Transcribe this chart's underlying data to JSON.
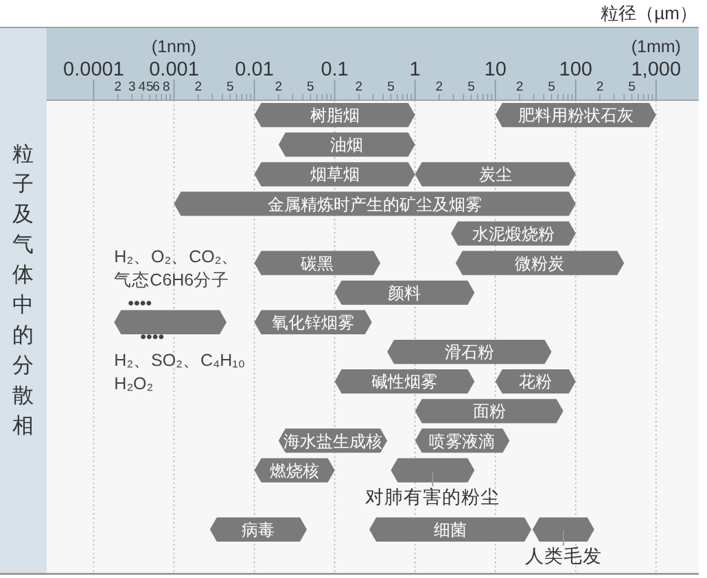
{
  "chart_data": {
    "type": "bar",
    "orientation": "horizontal",
    "log": "x",
    "grid": "x",
    "xlabel": "粒径（µm）",
    "ylabel": "粒子及气体中的分散相",
    "xlim": [
      2.6e-05,
      3400
    ],
    "xticks": [
      0.0001,
      {
        "value": 0.0002,
        "label": null
      },
      {
        "value": 0.0003,
        "label": null
      },
      {
        "value": 0.0004,
        "label": null
      },
      {
        "value": 0.0005,
        "label": null
      },
      {
        "value": 0.0006,
        "label": null
      },
      {
        "value": 0.0007,
        "label": null
      },
      {
        "value": 0.0008,
        "label": null
      },
      {
        "value": 0.0009,
        "label": null
      },
      0.001,
      {
        "value": 0.002,
        "label": null
      },
      {
        "value": 0.003,
        "label": null
      },
      {
        "value": 0.004,
        "label": null
      },
      {
        "value": 0.005,
        "label": null
      },
      {
        "value": 0.006,
        "label": null
      },
      {
        "value": 0.007,
        "label": null
      },
      {
        "value": 0.008,
        "label": null
      },
      {
        "value": 0.009,
        "label": null
      },
      0.01,
      {
        "value": 0.02,
        "label": null
      },
      {
        "value": 0.03,
        "label": null
      },
      {
        "value": 0.04,
        "label": null
      },
      {
        "value": 0.05,
        "label": null
      },
      {
        "value": 0.06,
        "label": null
      },
      {
        "value": 0.07,
        "label": null
      },
      {
        "value": 0.08,
        "label": null
      },
      {
        "value": 0.09,
        "label": null
      },
      0.1,
      {
        "value": 0.2,
        "label": null
      },
      {
        "value": 0.3,
        "label": null
      },
      {
        "value": 0.4,
        "label": null
      },
      {
        "value": 0.5,
        "label": null
      },
      {
        "value": 0.6,
        "label": null
      },
      {
        "value": 0.7,
        "label": null
      },
      {
        "value": 0.8,
        "label": null
      },
      {
        "value": 0.9,
        "label": null
      },
      1,
      {
        "value": 2,
        "label": null
      },
      {
        "value": 3,
        "label": null
      },
      {
        "value": 4,
        "label": null
      },
      {
        "value": 5,
        "label": null
      },
      {
        "value": 6,
        "label": null
      },
      {
        "value": 7,
        "label": null
      },
      {
        "value": 8,
        "label": null
      },
      {
        "value": 9,
        "label": null
      },
      10,
      {
        "value": 20,
        "label": null
      },
      {
        "value": 30,
        "label": null
      },
      {
        "value": 40,
        "label": null
      },
      {
        "value": 50,
        "label": null
      },
      {
        "value": 60,
        "label": null
      },
      {
        "value": 70,
        "label": null
      },
      {
        "value": 80,
        "label": null
      },
      {
        "value": 90,
        "label": null
      },
      100,
      {
        "value": 200,
        "label": null
      },
      {
        "value": 300,
        "label": null
      },
      {
        "value": 400,
        "label": null
      },
      {
        "value": 500,
        "label": null
      },
      {
        "value": 600,
        "label": null
      },
      {
        "value": 700,
        "label": null
      },
      {
        "value": 800,
        "label": null
      },
      {
        "value": 900,
        "label": null
      },
      {
        "value": 1000,
        "label": "1,000"
      }
    ],
    "categories": [
      null,
      null,
      null,
      null,
      null,
      null,
      null,
      null,
      null,
      null,
      null,
      null,
      null,
      null,
      null,
      null
    ],
    "series": [
      {
        "color": "#7a7a7a",
        "base": [
          0.01,
          0.02,
          0.01,
          0.001,
          2.8,
          0.01,
          0.1,
          0.00018,
          0.45,
          0.1,
          1,
          0.02,
          0.01,
          null,
          0.0028,
          null
        ],
        "values": [
          0.99,
          0.98,
          0.99,
          99.999,
          97.2,
          0.36,
          5.4,
          0.00432,
          49.55,
          5.4,
          69,
          0.43,
          0.09,
          null,
          0.0422,
          null
        ],
        "value_labels": [
          "树脂烟",
          "油烟",
          "烟草烟",
          "金属精炼时产生的矿尘及烟雾",
          "水泥煅烧粉",
          "碳黑",
          "颜料",
          null,
          "滑石粉",
          "碱性烟雾",
          "面粉",
          "海水盐生成核",
          "燃烧核",
          null,
          "病毒",
          null
        ]
      },
      {
        "color": "#7a7a7a",
        "base": [
          10,
          null,
          1,
          null,
          null,
          3.2,
          null,
          0.01,
          null,
          10,
          null,
          1,
          0.5,
          null,
          0.27,
          null
        ],
        "values": [
          990,
          null,
          99,
          null,
          null,
          396.8,
          null,
          0.28,
          null,
          90,
          null,
          14,
          5,
          null,
          27.73,
          null
        ],
        "value_labels": [
          "肥料用粉状石灰",
          null,
          "炭尘",
          null,
          null,
          "微粉炭",
          null,
          "氧化锌烟雾",
          null,
          "花粉",
          null,
          "喷雾液滴",
          "对肺有害的粉尘",
          null,
          "细菌",
          null
        ]
      },
      {
        "color": "#7a7a7a",
        "base": [
          null,
          null,
          null,
          null,
          null,
          null,
          null,
          null,
          null,
          null,
          null,
          null,
          null,
          null,
          29,
          null
        ],
        "values": [
          null,
          null,
          null,
          null,
          null,
          null,
          null,
          null,
          null,
          null,
          null,
          null,
          null,
          null,
          141,
          null
        ],
        "value_labels": [
          null,
          null,
          null,
          null,
          null,
          null,
          null,
          null,
          null,
          null,
          null,
          null,
          null,
          null,
          "人类毛发",
          null
        ]
      }
    ],
    "annotations": [
      "H₂、O₂、CO₂、",
      "气态C6H6分子",
      "••••",
      "••••",
      "H₂、SO₂、C₄H₁₀",
      "H₂O₂",
      "(1nm)",
      "(1mm)",
      "2",
      "3",
      "4",
      "5",
      "6",
      "8",
      "2",
      "5",
      "2",
      "5",
      "2",
      "5",
      "2",
      "5",
      "2",
      "5",
      "2",
      "5"
    ]
  }
}
